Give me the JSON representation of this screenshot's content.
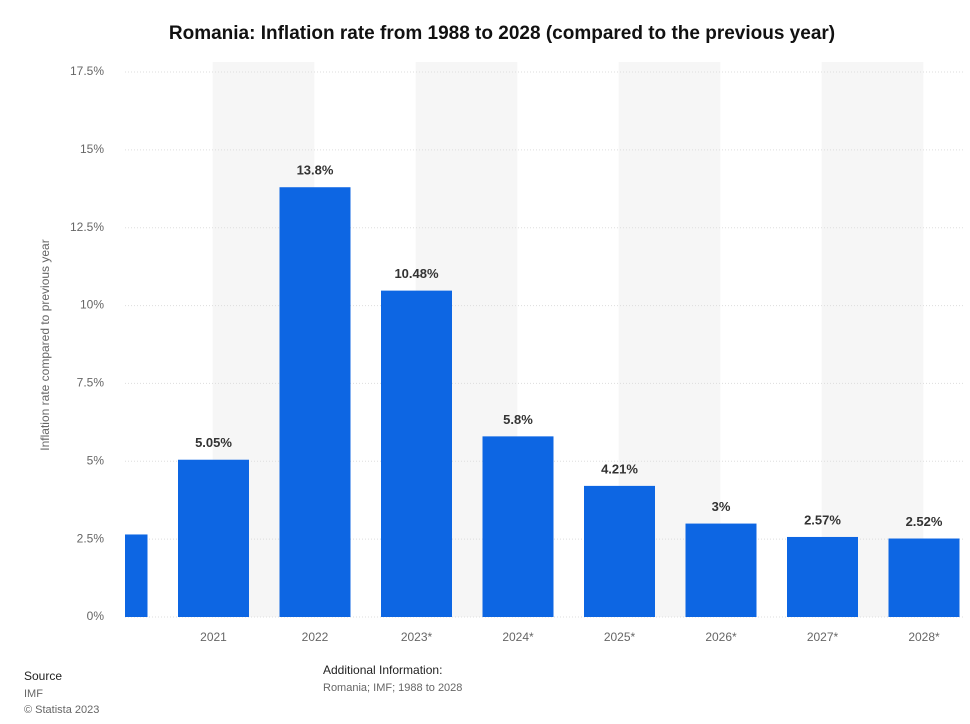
{
  "chart_data": {
    "type": "bar",
    "title": "Romania: Inflation rate from 1988 to 2028 (compared to the previous year)",
    "y_label": "Inflation rate compared to previous year",
    "categories": [
      null,
      "2021",
      "2022",
      "2023*",
      "2024*",
      "2025*",
      "2026*",
      "2027*",
      "2028*"
    ],
    "values": [
      2.65,
      5.05,
      13.8,
      10.48,
      5.8,
      4.21,
      3,
      2.57,
      2.52
    ],
    "value_labels": [
      null,
      "5.05%",
      "13.8%",
      "10.48%",
      "5.8%",
      "4.21%",
      "3%",
      "2.57%",
      "2.52%"
    ],
    "color": "#0d66e3",
    "ylim": [
      0,
      17.5
    ],
    "yticks": [
      {
        "value": 0,
        "label": "0%"
      },
      {
        "value": 2.5,
        "label": "2.5%"
      },
      {
        "value": 5,
        "label": "5%"
      },
      {
        "value": 7.5,
        "label": "7.5%"
      },
      {
        "value": 10,
        "label": "10%"
      },
      {
        "value": 12.5,
        "label": "12.5%"
      },
      {
        "value": 15,
        "label": "15%"
      },
      {
        "value": 17.5,
        "label": "17.5%"
      }
    ],
    "grid": true
  },
  "footer": {
    "source_title": "Source",
    "source": "IMF",
    "copyright": "© Statista 2023",
    "info_title": "Additional Information:",
    "info": "Romania; IMF; 1988 to 2028"
  }
}
